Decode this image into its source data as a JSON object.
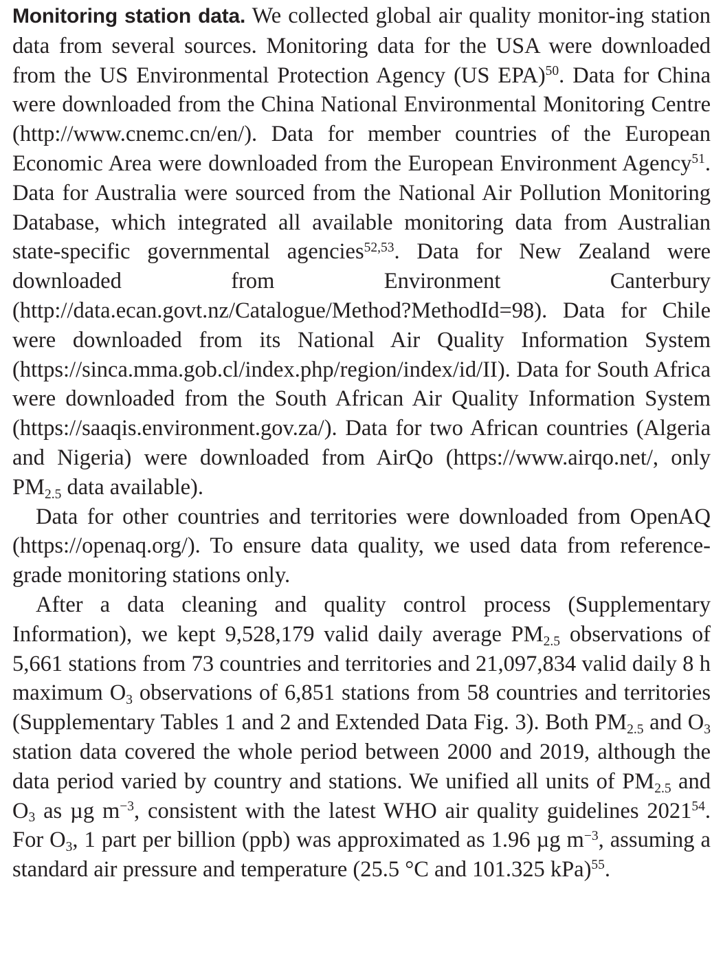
{
  "section": {
    "lead_heading": "Monitoring station data.",
    "p1": {
      "a": "We collected global air quality monitor-ing station data from several sources. Monitoring data for the USA were downloaded from the US Environmental Protection Agency (US EPA)",
      "ref50": "50",
      "b": ". Data for China were downloaded from the China National Environmental Monitoring Centre (http://www.cnemc.cn/en/). Data for member countries of the European Economic Area were downloaded from the European Environment Agency",
      "ref51": "51",
      "c": ". Data for Australia were sourced from the National Air Pollution Monitoring Database, which integrated all available monitoring data from Australian state-specific governmental agencies",
      "ref52_53": "52,53",
      "d": ". Data for New Zealand were downloaded from Environment Canterbury (http://data.ecan.govt.nz/Catalogue/Method?MethodId=98). Data for Chile were downloaded from its National Air Quality Information System (https://sinca.mma.gob.cl/index.php/region/index/id/II). Data for South Africa were downloaded from the South African Air Quality Information System (https://saaqis.environment.gov.za/). Data for two African countries (Algeria and Nigeria) were downloaded from AirQo (https://www.airqo.net/, only PM",
      "sub_25": "2.5",
      "e": " data available)."
    },
    "p2": "Data for other countries and territories were downloaded from OpenAQ (https://openaq.org/). To ensure data quality, we used data from reference-grade monitoring stations only.",
    "p3": {
      "a": "After a data cleaning and quality control process (Supplementary Information), we kept 9,528,179 valid daily average PM",
      "sub1": "2.5",
      "b": " observations of 5,661 stations from 73 countries and territories and 21,097,834 valid daily 8 h maximum O",
      "sub2": "3",
      "c": " observations of 6,851 stations from 58 countries and territories (Supplementary Tables 1 and 2 and Extended Data Fig. 3). Both PM",
      "sub3": "2.5",
      "d": " and O",
      "sub4": "3",
      "e": " station data covered the whole period between 2000 and 2019, although the data period varied by country and stations. We unified all units of PM",
      "sub5": "2.5",
      "f": " and O",
      "sub6": "3",
      "g": " as µg m",
      "sup_unit1": "−3",
      "h": ", consistent with the latest WHO air quality guidelines 2021",
      "ref54": "54",
      "i": ". For O",
      "sub7": "3",
      "j": ", 1 part per billion (ppb) was approximated as 1.96 µg m",
      "sup_unit2": "−3",
      "k": ", assuming a standard air pressure and temperature (25.5 °C and 101.325 kPa)",
      "ref55": "55",
      "l": "."
    }
  }
}
